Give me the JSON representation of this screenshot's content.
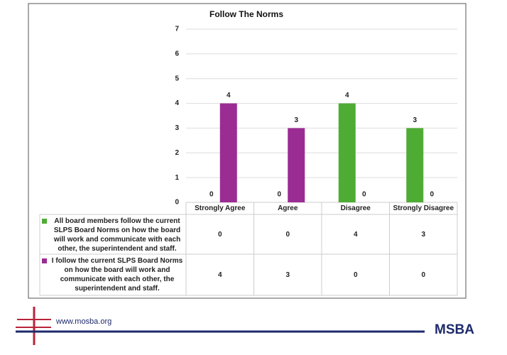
{
  "chart_data": {
    "type": "bar",
    "title": "Follow The Norms",
    "categories": [
      "Strongly Agree",
      "Agree",
      "Disagree",
      "Strongly Disagree"
    ],
    "series": [
      {
        "name": "All board members follow the current SLPS Board Norms on how the board will work and communicate with each other, the superintendent and staff.",
        "color": "#4eac34",
        "values": [
          0,
          0,
          4,
          3
        ]
      },
      {
        "name": "I follow the current SLPS Board Norms on how the board will work and communicate with each other, the superintendent and staff.",
        "color": "#9b2c93",
        "values": [
          4,
          3,
          0,
          0
        ]
      }
    ],
    "ylim": [
      0,
      7
    ],
    "yticks": [
      0,
      1,
      2,
      3,
      4,
      5,
      6,
      7
    ],
    "grid": true
  },
  "footer": {
    "url": "www.mosba.org",
    "logo": "MSBA"
  }
}
